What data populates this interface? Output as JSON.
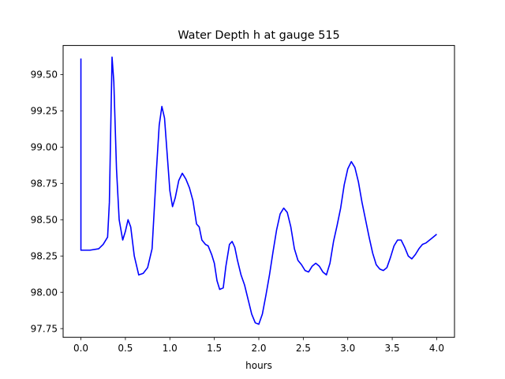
{
  "chart_data": {
    "type": "line",
    "title": "Water Depth h at gauge 515",
    "xlabel": "hours",
    "ylabel": "",
    "xlim": [
      -0.2,
      4.2
    ],
    "ylim": [
      97.69,
      99.7
    ],
    "xticks": [
      0.0,
      0.5,
      1.0,
      1.5,
      2.0,
      2.5,
      3.0,
      3.5,
      4.0
    ],
    "xtick_labels": [
      "0.0",
      "0.5",
      "1.0",
      "1.5",
      "2.0",
      "2.5",
      "3.0",
      "3.5",
      "4.0"
    ],
    "yticks": [
      97.75,
      98.0,
      98.25,
      98.5,
      98.75,
      99.0,
      99.25,
      99.5
    ],
    "ytick_labels": [
      "97.75",
      "98.00",
      "98.25",
      "98.50",
      "98.75",
      "99.00",
      "99.25",
      "99.50"
    ],
    "grid": false,
    "legend": "none",
    "series": [
      {
        "color": "#0000ff",
        "points": [
          [
            0.0,
            99.61
          ],
          [
            0.0,
            98.29
          ],
          [
            0.1,
            98.29
          ],
          [
            0.2,
            98.3
          ],
          [
            0.25,
            98.33
          ],
          [
            0.3,
            98.38
          ],
          [
            0.32,
            98.62
          ],
          [
            0.35,
            99.62
          ],
          [
            0.37,
            99.45
          ],
          [
            0.4,
            98.85
          ],
          [
            0.43,
            98.5
          ],
          [
            0.47,
            98.36
          ],
          [
            0.5,
            98.42
          ],
          [
            0.53,
            98.5
          ],
          [
            0.56,
            98.45
          ],
          [
            0.6,
            98.25
          ],
          [
            0.65,
            98.12
          ],
          [
            0.7,
            98.13
          ],
          [
            0.75,
            98.17
          ],
          [
            0.8,
            98.3
          ],
          [
            0.85,
            98.85
          ],
          [
            0.88,
            99.15
          ],
          [
            0.91,
            99.28
          ],
          [
            0.94,
            99.2
          ],
          [
            0.97,
            98.95
          ],
          [
            1.0,
            98.7
          ],
          [
            1.03,
            98.59
          ],
          [
            1.06,
            98.65
          ],
          [
            1.1,
            98.77
          ],
          [
            1.14,
            98.82
          ],
          [
            1.18,
            98.78
          ],
          [
            1.22,
            98.72
          ],
          [
            1.26,
            98.63
          ],
          [
            1.3,
            98.47
          ],
          [
            1.33,
            98.45
          ],
          [
            1.36,
            98.36
          ],
          [
            1.4,
            98.33
          ],
          [
            1.43,
            98.32
          ],
          [
            1.47,
            98.26
          ],
          [
            1.5,
            98.2
          ],
          [
            1.53,
            98.08
          ],
          [
            1.56,
            98.02
          ],
          [
            1.6,
            98.03
          ],
          [
            1.63,
            98.18
          ],
          [
            1.67,
            98.33
          ],
          [
            1.7,
            98.35
          ],
          [
            1.73,
            98.31
          ],
          [
            1.76,
            98.22
          ],
          [
            1.8,
            98.12
          ],
          [
            1.84,
            98.05
          ],
          [
            1.88,
            97.95
          ],
          [
            1.92,
            97.85
          ],
          [
            1.96,
            97.79
          ],
          [
            2.0,
            97.78
          ],
          [
            2.04,
            97.85
          ],
          [
            2.08,
            97.98
          ],
          [
            2.12,
            98.12
          ],
          [
            2.16,
            98.28
          ],
          [
            2.2,
            98.43
          ],
          [
            2.24,
            98.54
          ],
          [
            2.28,
            98.58
          ],
          [
            2.32,
            98.55
          ],
          [
            2.36,
            98.45
          ],
          [
            2.4,
            98.3
          ],
          [
            2.44,
            98.22
          ],
          [
            2.48,
            98.19
          ],
          [
            2.52,
            98.15
          ],
          [
            2.56,
            98.14
          ],
          [
            2.6,
            98.18
          ],
          [
            2.64,
            98.2
          ],
          [
            2.68,
            98.18
          ],
          [
            2.72,
            98.14
          ],
          [
            2.76,
            98.12
          ],
          [
            2.8,
            98.2
          ],
          [
            2.84,
            98.35
          ],
          [
            2.88,
            98.46
          ],
          [
            2.92,
            98.58
          ],
          [
            2.96,
            98.74
          ],
          [
            3.0,
            98.85
          ],
          [
            3.04,
            98.9
          ],
          [
            3.08,
            98.86
          ],
          [
            3.12,
            98.76
          ],
          [
            3.16,
            98.62
          ],
          [
            3.2,
            98.5
          ],
          [
            3.24,
            98.38
          ],
          [
            3.28,
            98.27
          ],
          [
            3.32,
            98.19
          ],
          [
            3.36,
            98.16
          ],
          [
            3.4,
            98.15
          ],
          [
            3.44,
            98.17
          ],
          [
            3.48,
            98.24
          ],
          [
            3.52,
            98.32
          ],
          [
            3.56,
            98.36
          ],
          [
            3.6,
            98.36
          ],
          [
            3.64,
            98.31
          ],
          [
            3.68,
            98.25
          ],
          [
            3.72,
            98.23
          ],
          [
            3.76,
            98.26
          ],
          [
            3.8,
            98.3
          ],
          [
            3.84,
            98.33
          ],
          [
            3.88,
            98.34
          ],
          [
            3.92,
            98.36
          ],
          [
            3.96,
            98.38
          ],
          [
            4.0,
            98.4
          ]
        ]
      }
    ]
  }
}
